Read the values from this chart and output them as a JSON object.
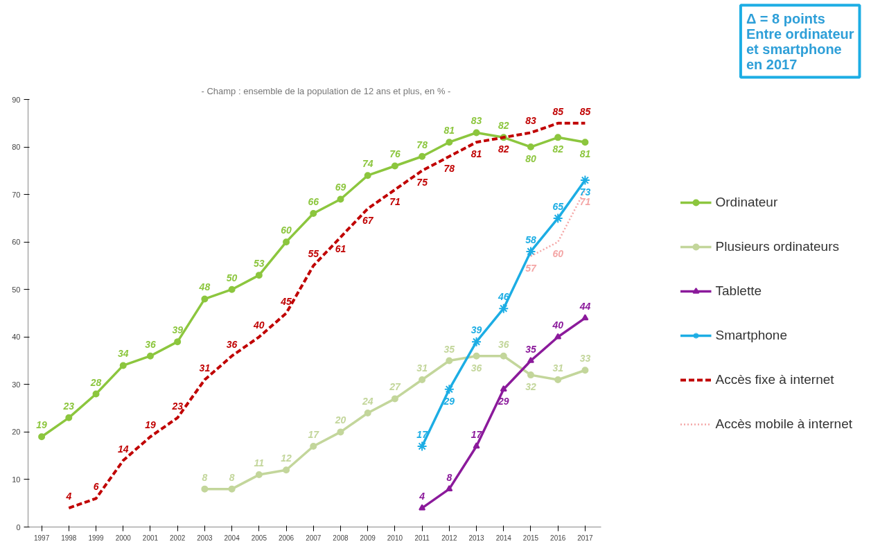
{
  "chart_data": {
    "type": "line",
    "subtitle": "- Champ : ensemble de la population de 12 ans et plus, en % -",
    "annotations": [
      "Δ = 8 points\nEntre ordinateur\net smartphone\nen 2017"
    ],
    "categories": [
      "1997",
      "1998",
      "1999",
      "2000",
      "2001",
      "2002",
      "2003",
      "2004",
      "2005",
      "2006",
      "2007",
      "2008",
      "2009",
      "2010",
      "2011",
      "2012",
      "2013",
      "2014",
      "2015",
      "2016",
      "2017"
    ],
    "ylim": [
      0,
      90
    ],
    "yticks": [
      0,
      10,
      20,
      30,
      40,
      50,
      60,
      70,
      80,
      90
    ],
    "grid": false,
    "legend": "right",
    "data_labels": true,
    "series": [
      {
        "name": "Ordinateur",
        "color": "#8cc63e",
        "marker": "circle",
        "line_style": "solid",
        "values": [
          19,
          23,
          28,
          34,
          36,
          39,
          48,
          50,
          53,
          60,
          66,
          69,
          74,
          76,
          78,
          81,
          83,
          82,
          80,
          82,
          81
        ]
      },
      {
        "name": "Plusieurs ordinateurs",
        "color": "#c3d69b",
        "marker": "circle",
        "line_style": "solid",
        "values": [
          null,
          null,
          null,
          null,
          null,
          null,
          8,
          8,
          11,
          12,
          17,
          20,
          24,
          27,
          31,
          35,
          36,
          36,
          32,
          31,
          33
        ]
      },
      {
        "name": "Tablette",
        "color": "#8b1a9b",
        "marker": "triangle",
        "line_style": "solid",
        "values": [
          null,
          null,
          null,
          null,
          null,
          null,
          null,
          null,
          null,
          null,
          null,
          null,
          null,
          null,
          4,
          8,
          17,
          29,
          35,
          40,
          44
        ]
      },
      {
        "name": "Smartphone",
        "color": "#1cade4",
        "marker": "cross",
        "line_style": "solid",
        "values": [
          null,
          null,
          null,
          null,
          null,
          null,
          null,
          null,
          null,
          null,
          null,
          null,
          null,
          null,
          17,
          29,
          39,
          46,
          58,
          65,
          73
        ]
      },
      {
        "name": "Accès fixe à internet",
        "color": "#c00000",
        "marker": "none",
        "line_style": "dashed",
        "values": [
          null,
          4,
          6,
          14,
          19,
          23,
          31,
          36,
          40,
          45,
          55,
          61,
          67,
          71,
          75,
          78,
          81,
          82,
          83,
          85,
          85
        ]
      },
      {
        "name": "Accès mobile à internet",
        "color": "#f4a6a6",
        "marker": "none",
        "line_style": "dotted",
        "values": [
          null,
          null,
          null,
          null,
          null,
          null,
          null,
          null,
          null,
          null,
          null,
          null,
          null,
          null,
          null,
          null,
          null,
          null,
          57,
          60,
          71
        ]
      }
    ]
  }
}
